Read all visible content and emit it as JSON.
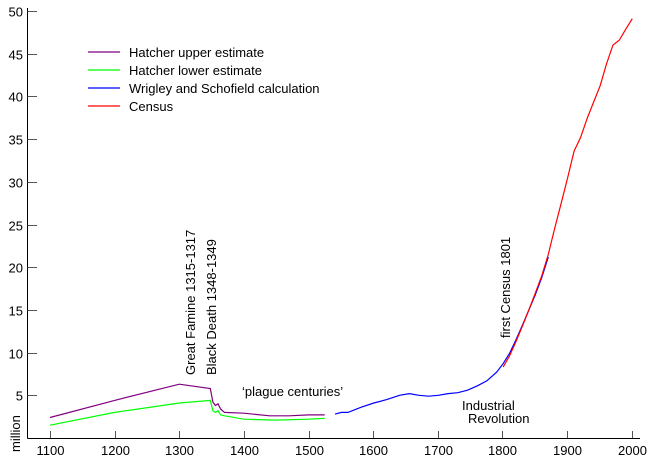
{
  "chart_data": {
    "type": "line",
    "title": "",
    "xlabel": "",
    "ylabel": "million",
    "xlim": [
      1080,
      2000
    ],
    "ylim": [
      0,
      50
    ],
    "x_ticks": [
      1100,
      1200,
      1300,
      1400,
      1500,
      1600,
      1700,
      1800,
      1900,
      2000
    ],
    "y_ticks": [
      5,
      10,
      15,
      20,
      25,
      30,
      35,
      40,
      45,
      50
    ],
    "grid": false,
    "legend_position": "upper-left",
    "series": [
      {
        "name": "Hatcher upper estimate",
        "color": "#800080",
        "x": [
          1100,
          1200,
          1300,
          1348,
          1352,
          1356,
          1360,
          1364,
          1370,
          1400,
          1440,
          1470,
          1500,
          1525
        ],
        "values": [
          2.4,
          4.4,
          6.3,
          5.8,
          4.2,
          3.8,
          4.0,
          3.4,
          3.0,
          2.9,
          2.6,
          2.6,
          2.7,
          2.7
        ]
      },
      {
        "name": "Hatcher lower estimate",
        "color": "#00ff00",
        "x": [
          1100,
          1200,
          1300,
          1348,
          1352,
          1356,
          1360,
          1364,
          1370,
          1400,
          1450,
          1500,
          1525
        ],
        "values": [
          1.5,
          3.0,
          4.1,
          4.4,
          3.2,
          3.0,
          3.2,
          2.7,
          2.6,
          2.2,
          2.1,
          2.2,
          2.3
        ]
      },
      {
        "name": "Wrigley and Schofield calculation",
        "color": "#0000ff",
        "x": [
          1541,
          1551,
          1561,
          1581,
          1601,
          1621,
          1641,
          1656,
          1671,
          1686,
          1701,
          1716,
          1731,
          1746,
          1761,
          1776,
          1791,
          1801,
          1811,
          1821,
          1831,
          1841,
          1851,
          1861,
          1871
        ],
        "values": [
          2.8,
          3.0,
          3.0,
          3.6,
          4.1,
          4.5,
          5.0,
          5.2,
          5.0,
          4.9,
          5.0,
          5.2,
          5.3,
          5.6,
          6.1,
          6.7,
          7.7,
          8.7,
          9.9,
          11.5,
          13.2,
          15.0,
          16.8,
          18.8,
          21.2
        ]
      },
      {
        "name": "Census",
        "color": "#ff0000",
        "x": [
          1801,
          1811,
          1821,
          1831,
          1841,
          1851,
          1861,
          1871,
          1881,
          1891,
          1901,
          1911,
          1921,
          1931,
          1941,
          1951,
          1961,
          1971,
          1981,
          1991,
          2001
        ],
        "values": [
          8.3,
          9.6,
          11.3,
          13.1,
          15.0,
          17.0,
          19.0,
          21.5,
          24.6,
          27.5,
          30.5,
          33.6,
          35.2,
          37.4,
          39.3,
          41.2,
          43.8,
          46.0,
          46.6,
          47.9,
          49.1
        ]
      }
    ],
    "annotations": [
      {
        "text": "Great Famine 1315-1317",
        "x": 1316,
        "y": 15,
        "rotation": -90
      },
      {
        "text": "Black Death 1348-1349",
        "x": 1349,
        "y": 15,
        "rotation": -90
      },
      {
        "text": "‘plague centuries’",
        "x": 1400,
        "y": 5.5
      },
      {
        "text": "Industrial",
        "x": 1765,
        "y": 3.6
      },
      {
        "text": "Revolution",
        "x": 1770,
        "y": 2.2
      },
      {
        "text": "first Census 1801",
        "x": 1801,
        "y": 11,
        "rotation": -90
      }
    ]
  }
}
